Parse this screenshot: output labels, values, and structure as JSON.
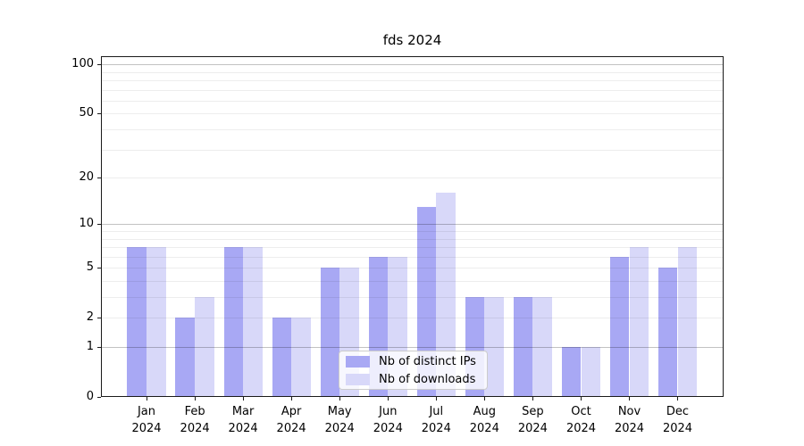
{
  "chart_data": {
    "type": "bar",
    "title": "fds 2024",
    "categories": [
      "Jan",
      "Feb",
      "Mar",
      "Apr",
      "May",
      "Jun",
      "Jul",
      "Aug",
      "Sep",
      "Oct",
      "Nov",
      "Dec"
    ],
    "category_year": "2024",
    "series": [
      {
        "name": "Nb of distinct IPs",
        "color": "#a8a8f4",
        "values": [
          7,
          2,
          7,
          2,
          5,
          6,
          13,
          3,
          3,
          1,
          6,
          5
        ]
      },
      {
        "name": "Nb of downloads",
        "color": "#d8d8f9",
        "values": [
          7,
          3,
          7,
          2,
          5,
          6,
          16,
          3,
          3,
          1,
          7,
          7
        ]
      }
    ],
    "xlabel": "",
    "ylabel": "",
    "yscale": "log1p",
    "ylim": [
      0,
      112
    ],
    "ytick_values": [
      0,
      1,
      2,
      5,
      10,
      20,
      50,
      100
    ],
    "ytick_labels": [
      "0",
      "1",
      "2",
      "5",
      "10",
      "20",
      "50",
      "100"
    ],
    "grid": {
      "orientation": "horizontal",
      "major_values": [
        1,
        10,
        100
      ],
      "minor_values": [
        2,
        3,
        4,
        5,
        6,
        7,
        8,
        9,
        20,
        30,
        40,
        50,
        60,
        70,
        80,
        90
      ],
      "major_color": "rgba(0,0,0,0.24)",
      "minor_color": "rgba(0,0,0,0.07)"
    },
    "legend_position": "lower-center",
    "frame_color": "#1a1a1a",
    "background_color": "#ffffff"
  }
}
